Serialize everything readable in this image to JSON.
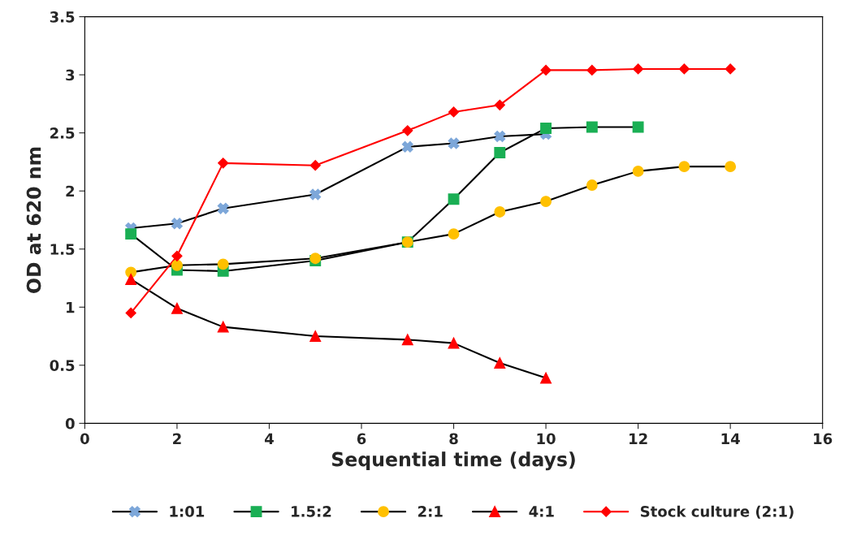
{
  "chart_data": {
    "type": "line",
    "xlabel": "Sequential time (days)",
    "ylabel": "OD at 620 nm",
    "xlim": [
      0,
      16
    ],
    "xticks": [
      0,
      2,
      4,
      6,
      8,
      10,
      12,
      14,
      16
    ],
    "ylim": [
      0,
      3.5
    ],
    "yticks": [
      0,
      0.5,
      1,
      1.5,
      2,
      2.5,
      3,
      3.5
    ],
    "grid": false,
    "legend": "bottom",
    "line_style": "solid",
    "series": [
      {
        "name": "1:01",
        "color": "#000000",
        "colors": [
          "#7da7d9",
          "#7da7d9",
          "#7da7d9",
          "#7da7d9",
          "#7da7d9",
          "#7da7d9",
          "#7da7d9",
          "#7da7d9"
        ],
        "marker": "cross",
        "x": [
          1,
          2,
          3,
          5,
          7,
          8,
          9,
          10
        ],
        "values": [
          1.68,
          1.72,
          1.85,
          1.97,
          2.38,
          2.41,
          2.47,
          2.49
        ]
      },
      {
        "name": "1.5:2",
        "color": "#000000",
        "colors": [
          "#1aaf54",
          "#1aaf54",
          "#1aaf54",
          "#1aaf54",
          "#1aaf54",
          "#1aaf54",
          "#1aaf54",
          "#1aaf54",
          "#1aaf54",
          "#1aaf54"
        ],
        "marker": "square",
        "x": [
          1,
          2,
          3,
          5,
          7,
          8,
          9,
          10,
          11,
          12
        ],
        "values": [
          1.63,
          1.32,
          1.31,
          1.4,
          1.56,
          1.93,
          2.33,
          2.54,
          2.55,
          2.55
        ]
      },
      {
        "name": "2:1",
        "color": "#000000",
        "colors": [
          "#ffc000",
          "#ffc000",
          "#ffc000",
          "#ffc000",
          "#ffc000",
          "#ffc000",
          "#ffc000",
          "#ffc000",
          "#ffc000",
          "#ffc000",
          "#ffc000",
          "#ffc000"
        ],
        "marker": "circle",
        "x": [
          1,
          2,
          3,
          5,
          7,
          8,
          9,
          10,
          11,
          12,
          13,
          14
        ],
        "values": [
          1.3,
          1.36,
          1.37,
          1.42,
          1.56,
          1.63,
          1.82,
          1.91,
          2.05,
          2.17,
          2.21,
          2.21
        ]
      },
      {
        "name": "4:1",
        "color": "#000000",
        "colors": [
          "#ff0000",
          "#ff0000",
          "#ff0000",
          "#ff0000",
          "#ff0000",
          "#ff0000",
          "#ff0000",
          "#ff0000"
        ],
        "marker": "triangle",
        "x": [
          1,
          2,
          3,
          5,
          7,
          8,
          9,
          10
        ],
        "values": [
          1.24,
          0.99,
          0.83,
          0.75,
          0.72,
          0.69,
          0.52,
          0.39
        ]
      },
      {
        "name": "Stock culture (2:1)",
        "color": "#ff0000",
        "colors": [
          "#ff0000",
          "#ff0000",
          "#ff0000",
          "#ff0000",
          "#ff0000",
          "#ff0000",
          "#ff0000",
          "#ff0000",
          "#ff0000",
          "#ff0000",
          "#ff0000",
          "#ff0000"
        ],
        "marker": "diamond",
        "x": [
          1,
          2,
          3,
          5,
          7,
          8,
          9,
          10,
          11,
          12,
          13,
          14
        ],
        "values": [
          0.95,
          1.44,
          2.24,
          2.22,
          2.52,
          2.68,
          2.74,
          3.04,
          3.04,
          3.05,
          3.05,
          3.05
        ]
      }
    ]
  }
}
